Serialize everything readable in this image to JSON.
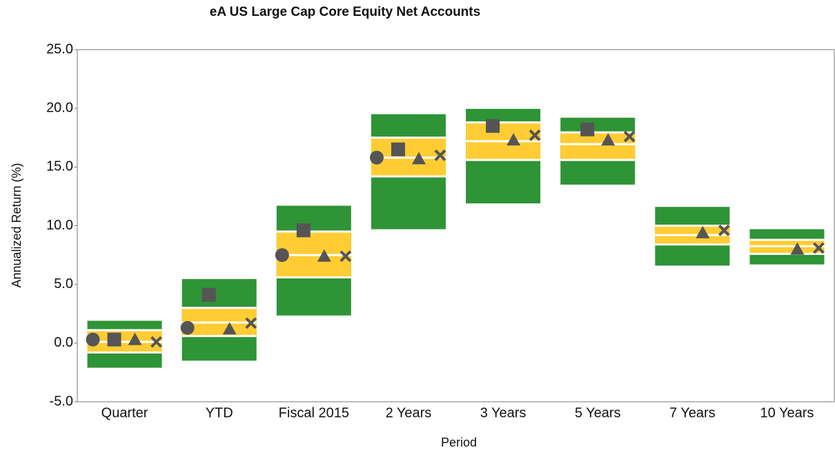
{
  "chart_data": {
    "type": "floating_bar",
    "title": "eA US Large Cap Core Equity Net Accounts",
    "x_label": "Period",
    "y_label": "Annualized Return (%)",
    "categories": [
      "Quarter",
      "YTD",
      "Fiscal 2015",
      "2 Years",
      "3 Years",
      "5 Years",
      "7 Years",
      "10 Years"
    ],
    "ylim": [
      -5,
      25
    ],
    "yticks": [
      {
        "value": -5,
        "label": "-5.0"
      },
      {
        "value": 0,
        "label": "0.0"
      },
      {
        "value": 5,
        "label": "5.0"
      },
      {
        "value": 10,
        "label": "10.0"
      },
      {
        "value": 15,
        "label": "15.0"
      },
      {
        "value": 20,
        "label": "20.0"
      },
      {
        "value": 25,
        "label": "25.0"
      }
    ],
    "outer_color": "#2e9436",
    "inner_color": "#ffcc33",
    "line_color": "#ffffff",
    "marker_color": "#555555",
    "p5": [
      -2.1,
      -1.5,
      2.35,
      9.7,
      11.9,
      13.5,
      6.6,
      6.7
    ],
    "p25": [
      -0.8,
      0.6,
      5.6,
      14.2,
      15.6,
      15.6,
      8.4,
      7.6
    ],
    "p50": [
      0.1,
      1.75,
      7.5,
      15.8,
      17.2,
      16.95,
      9.2,
      8.25
    ],
    "p75": [
      1.1,
      3.0,
      9.5,
      17.5,
      18.8,
      17.95,
      10.0,
      8.8
    ],
    "p95": [
      1.9,
      5.45,
      11.7,
      19.5,
      19.95,
      19.2,
      11.6,
      9.7
    ],
    "markers": [
      {
        "shape": "circle",
        "values": [
          0.3,
          1.3,
          7.5,
          15.8,
          null,
          null,
          null,
          null
        ]
      },
      {
        "shape": "square",
        "values": [
          0.3,
          4.1,
          9.6,
          16.5,
          18.5,
          18.2,
          null,
          null
        ]
      },
      {
        "shape": "triangle",
        "values": [
          0.3,
          1.2,
          7.4,
          15.7,
          17.3,
          17.3,
          9.4,
          8.0
        ]
      },
      {
        "shape": "x",
        "values": [
          0.1,
          1.7,
          7.4,
          16.0,
          17.7,
          17.6,
          9.6,
          8.1
        ]
      }
    ]
  }
}
